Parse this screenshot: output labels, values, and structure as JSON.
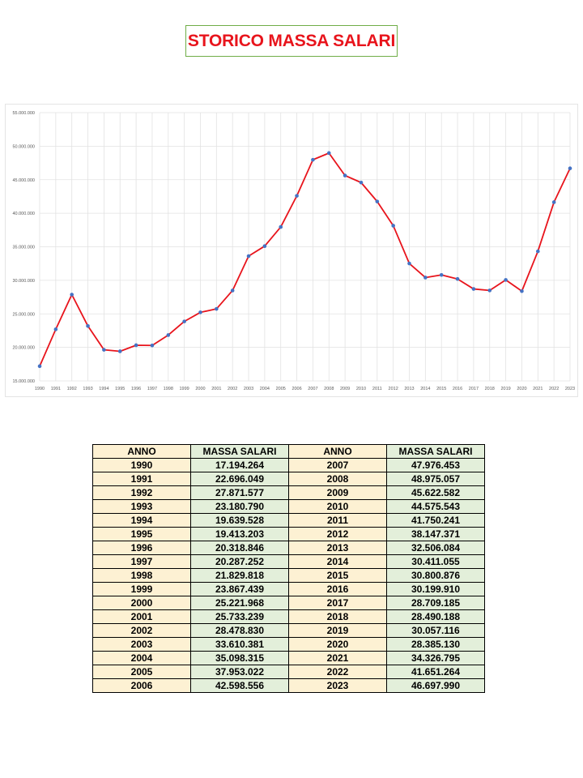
{
  "title": "STORICO MASSA SALARI",
  "colors": {
    "title": "#e8141c",
    "title_border": "#70ad47",
    "line": "#e8141c",
    "marker": "#4472c4",
    "year_cell": "#fdf1d3",
    "value_cell": "#e3efda"
  },
  "chart_data": {
    "type": "line",
    "title": "",
    "xlabel": "",
    "ylabel": "",
    "x": [
      "1990",
      "1991",
      "1992",
      "1993",
      "1994",
      "1995",
      "1996",
      "1997",
      "1998",
      "1999",
      "2000",
      "2001",
      "2002",
      "2003",
      "2004",
      "2005",
      "2006",
      "2007",
      "2008",
      "2009",
      "2010",
      "2011",
      "2012",
      "2013",
      "2014",
      "2015",
      "2016",
      "2017",
      "2018",
      "2019",
      "2020",
      "2021",
      "2022",
      "2023"
    ],
    "series": [
      {
        "values": [
          17194264,
          22696049,
          27871577,
          23180790,
          19639528,
          19413203,
          20318846,
          20287252,
          21829818,
          23867439,
          25221968,
          25733239,
          28478830,
          33610381,
          35098315,
          37953022,
          42598556,
          47976453,
          48975057,
          45622582,
          44575543,
          41750241,
          38147371,
          32506084,
          30411055,
          30800876,
          30199910,
          28709185,
          28490188,
          30057116,
          28385130,
          34326795,
          41651264,
          46697990
        ]
      }
    ],
    "ylim": [
      15000000,
      55000000
    ],
    "yticks": [
      "15.000.000",
      "20.000.000",
      "25.000.000",
      "30.000.000",
      "35.000.000",
      "40.000.000",
      "45.000.000",
      "50.000.000",
      "55.000.000"
    ],
    "grid": true,
    "legend": "none"
  },
  "table": {
    "headers": [
      "ANNO",
      "MASSA SALARI",
      "ANNO",
      "MASSA SALARI"
    ],
    "rows": [
      [
        "1990",
        "17.194.264",
        "2007",
        "47.976.453"
      ],
      [
        "1991",
        "22.696.049",
        "2008",
        "48.975.057"
      ],
      [
        "1992",
        "27.871.577",
        "2009",
        "45.622.582"
      ],
      [
        "1993",
        "23.180.790",
        "2010",
        "44.575.543"
      ],
      [
        "1994",
        "19.639.528",
        "2011",
        "41.750.241"
      ],
      [
        "1995",
        "19.413.203",
        "2012",
        "38.147.371"
      ],
      [
        "1996",
        "20.318.846",
        "2013",
        "32.506.084"
      ],
      [
        "1997",
        "20.287.252",
        "2014",
        "30.411.055"
      ],
      [
        "1998",
        "21.829.818",
        "2015",
        "30.800.876"
      ],
      [
        "1999",
        "23.867.439",
        "2016",
        "30.199.910"
      ],
      [
        "2000",
        "25.221.968",
        "2017",
        "28.709.185"
      ],
      [
        "2001",
        "25.733.239",
        "2018",
        "28.490.188"
      ],
      [
        "2002",
        "28.478.830",
        "2019",
        "30.057.116"
      ],
      [
        "2003",
        "33.610.381",
        "2020",
        "28.385.130"
      ],
      [
        "2004",
        "35.098.315",
        "2021",
        "34.326.795"
      ],
      [
        "2005",
        "37.953.022",
        "2022",
        "41.651.264"
      ],
      [
        "2006",
        "42.598.556",
        "2023",
        "46.697.990"
      ]
    ]
  }
}
